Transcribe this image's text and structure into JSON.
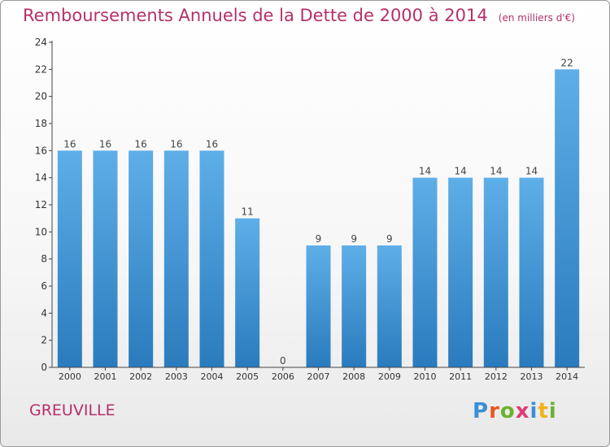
{
  "header": {
    "title": "Remboursements Annuels de la Dette de 2000 à 2014",
    "unit": "(en milliers d'€)"
  },
  "footer": {
    "commune": "GREUVILLE",
    "logo_letters": [
      "P",
      "r",
      "o",
      "x",
      "i",
      "t",
      "i"
    ]
  },
  "colors": {
    "title": "#b5306a",
    "bar_light": "#5eaee8",
    "bar_dark": "#2a7bbd",
    "axis": "#444444",
    "grid_tick": "#444444"
  },
  "chart_data": {
    "type": "bar",
    "title": "Remboursements Annuels de la Dette de 2000 à 2014",
    "ylabel": "",
    "xlabel": "",
    "ylim": [
      0,
      24
    ],
    "yticks": [
      0,
      2,
      4,
      6,
      8,
      10,
      12,
      14,
      16,
      18,
      20,
      22,
      24
    ],
    "grid": false,
    "categories": [
      "2000",
      "2001",
      "2002",
      "2003",
      "2004",
      "2005",
      "2006",
      "2007",
      "2008",
      "2009",
      "2010",
      "2011",
      "2012",
      "2013",
      "2014"
    ],
    "values": [
      16,
      16,
      16,
      16,
      16,
      11,
      0,
      9,
      9,
      9,
      14,
      14,
      14,
      14,
      22
    ]
  }
}
